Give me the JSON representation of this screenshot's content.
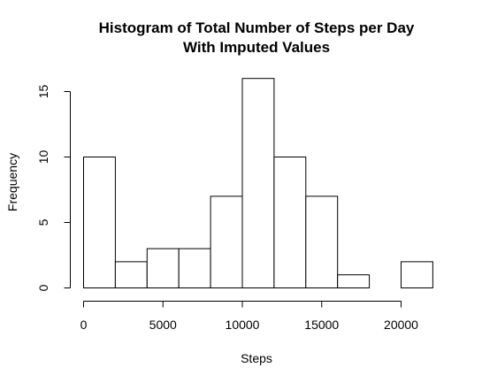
{
  "chart_data": {
    "type": "bar",
    "title": "Histogram of Total Number of Steps per Day",
    "subtitle": "With Imputed Values",
    "xlabel": "Steps",
    "ylabel": "Frequency",
    "bin_edges": [
      0,
      2000,
      4000,
      6000,
      8000,
      10000,
      12000,
      14000,
      16000,
      18000,
      20000,
      22000
    ],
    "values": [
      10,
      2,
      3,
      3,
      7,
      16,
      10,
      7,
      1,
      0,
      2
    ],
    "xlim": [
      0,
      22000
    ],
    "ylim": [
      0,
      16
    ],
    "x_ticks": [
      0,
      5000,
      10000,
      15000,
      20000
    ],
    "x_tick_labels": [
      "0",
      "5000",
      "10000",
      "15000",
      "20000"
    ],
    "y_ticks": [
      0,
      5,
      10,
      15
    ],
    "y_tick_labels": [
      "0",
      "5",
      "10",
      "15"
    ],
    "grid": false,
    "bar_fill": "#ffffff",
    "bar_stroke": "#000000"
  }
}
